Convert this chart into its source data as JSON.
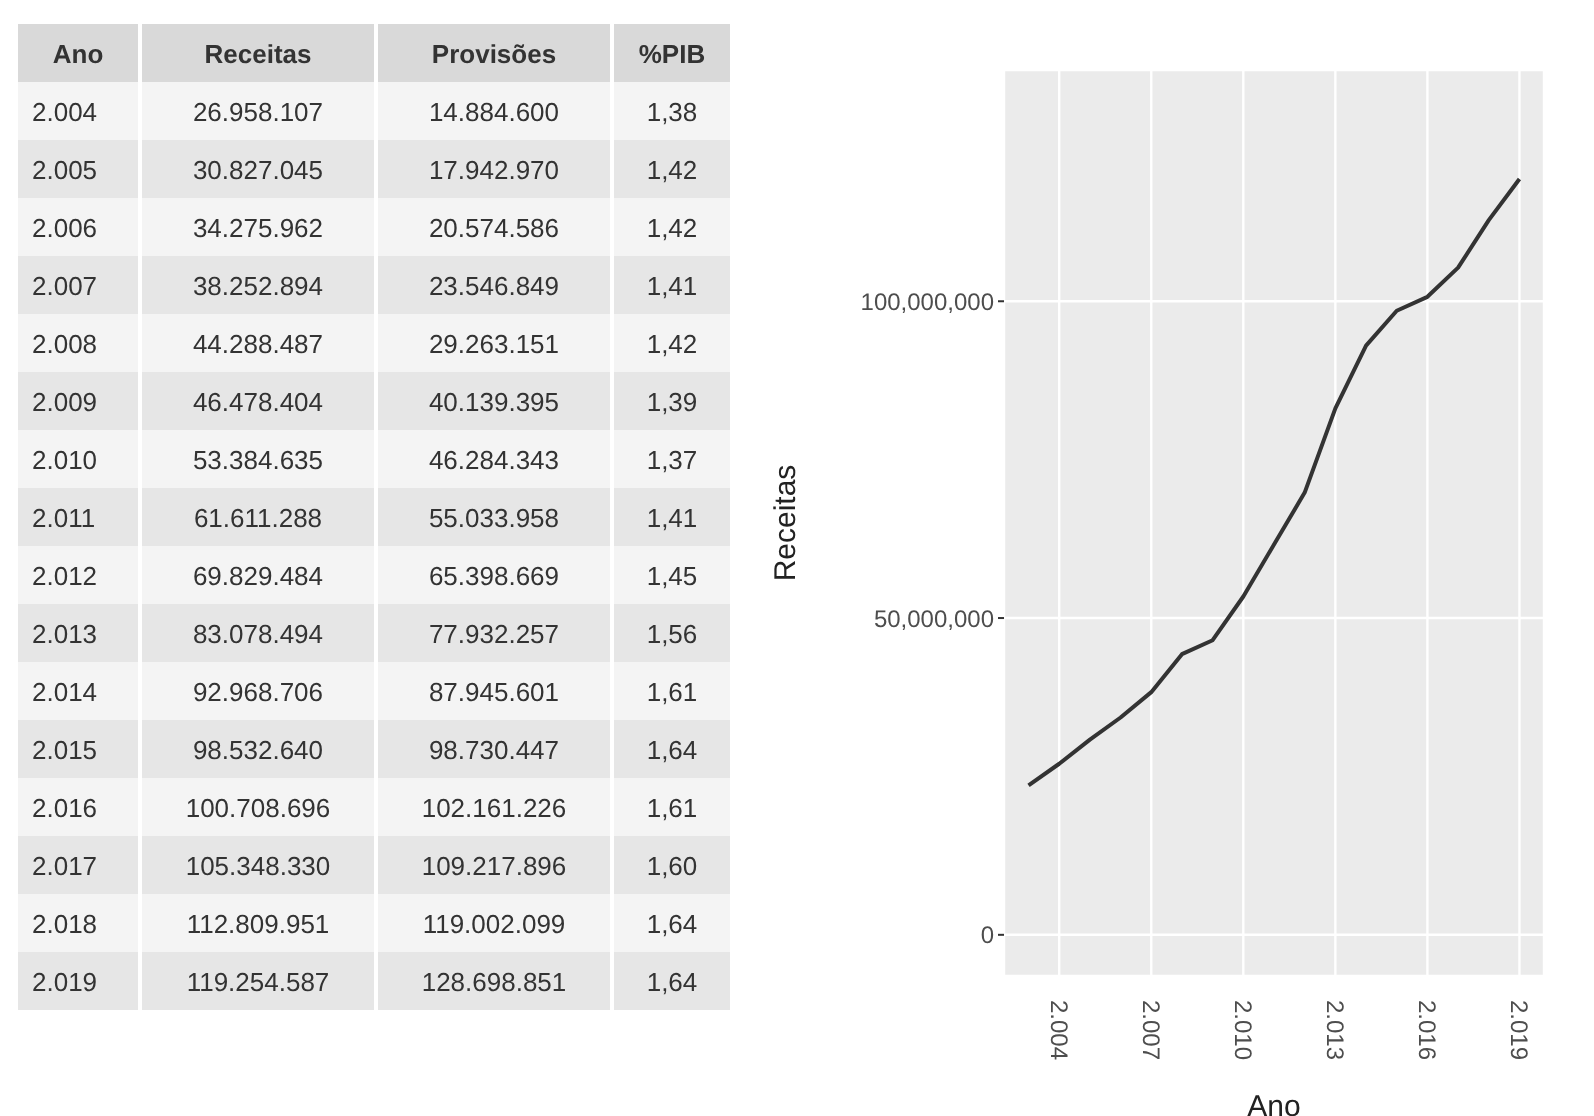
{
  "chart_data": [
    {
      "type": "heatmap",
      "ylabel": "Ano",
      "categories": [
        "Receitas",
        "Provisões",
        "%PIB"
      ],
      "y_categories": [
        "2.004",
        "2.005",
        "2.006",
        "2.007",
        "2.008",
        "2.009",
        "2.010",
        "2.011",
        "2.012",
        "2.013",
        "2.014",
        "2.015",
        "2.016",
        "2.017",
        "2.018",
        "2.019"
      ],
      "cells": [
        [
          26958107,
          14884600,
          1.38
        ],
        [
          30827045,
          17942970,
          1.42
        ],
        [
          34275962,
          20574586,
          1.42
        ],
        [
          38252894,
          23546849,
          1.41
        ],
        [
          44288487,
          29263151,
          1.42
        ],
        [
          46478404,
          40139395,
          1.39
        ],
        [
          53384635,
          46284343,
          1.37
        ],
        [
          61611288,
          55033958,
          1.41
        ],
        [
          69829484,
          65398669,
          1.45
        ],
        [
          83078494,
          77932257,
          1.56
        ],
        [
          92968706,
          87945601,
          1.61
        ],
        [
          98532640,
          98730447,
          1.64
        ],
        [
          100708696,
          102161226,
          1.61
        ],
        [
          105348330,
          109217896,
          1.6
        ],
        [
          112809951,
          119002099,
          1.64
        ],
        [
          119254587,
          128698851,
          1.64
        ]
      ],
      "cell_labels": [
        [
          "26.958.107",
          "14.884.600",
          "1,38"
        ],
        [
          "30.827.045",
          "17.942.970",
          "1,42"
        ],
        [
          "34.275.962",
          "20.574.586",
          "1,42"
        ],
        [
          "38.252.894",
          "23.546.849",
          "1,41"
        ],
        [
          "44.288.487",
          "29.263.151",
          "1,42"
        ],
        [
          "46.478.404",
          "40.139.395",
          "1,39"
        ],
        [
          "53.384.635",
          "46.284.343",
          "1,37"
        ],
        [
          "61.611.288",
          "55.033.958",
          "1,41"
        ],
        [
          "69.829.484",
          "65.398.669",
          "1,45"
        ],
        [
          "83.078.494",
          "77.932.257",
          "1,56"
        ],
        [
          "92.968.706",
          "87.945.601",
          "1,61"
        ],
        [
          "98.532.640",
          "98.730.447",
          "1,64"
        ],
        [
          "100.708.696",
          "102.161.226",
          "1,61"
        ],
        [
          "105.348.330",
          "109.217.896",
          "1,60"
        ],
        [
          "112.809.951",
          "119.002.099",
          "1,64"
        ],
        [
          "119.254.587",
          "128.698.851",
          "1,64"
        ]
      ]
    },
    {
      "type": "line",
      "xlabel": "Ano",
      "ylabel": "Receitas",
      "categories": [
        null,
        "2.004",
        null,
        null,
        "2.007",
        null,
        null,
        "2.010",
        null,
        null,
        "2.013",
        null,
        null,
        "2.016",
        null,
        null,
        "2.019"
      ],
      "values": [
        23600000,
        27000000,
        30800000,
        34300000,
        38300000,
        44300000,
        46500000,
        53400000,
        61600000,
        69800000,
        83100000,
        93000000,
        98500000,
        100700000,
        105300000,
        112800000,
        119300000
      ],
      "color": "#333333",
      "ylim": [
        -6500000,
        136500000
      ],
      "yticks": [
        {
          "value": 0,
          "label": "0"
        },
        {
          "value": 50000000,
          "label": "50,000,000"
        },
        {
          "value": 100000000,
          "label": "100,000,000"
        }
      ],
      "grid": true
    }
  ]
}
